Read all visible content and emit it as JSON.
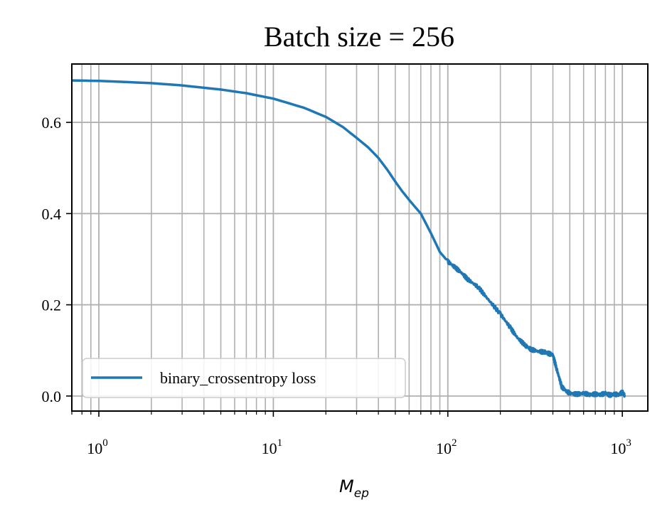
{
  "chart_data": {
    "type": "line",
    "title": "Batch size = 256",
    "xlabel": {
      "base": "M",
      "sub": "ep"
    },
    "ylabel": "",
    "x_scale": "log",
    "xlim": [
      0.7,
      1400
    ],
    "ylim": [
      -0.033,
      0.728
    ],
    "grid": true,
    "grid_minor_x": true,
    "legend_position": "lower-left",
    "line_color": "#1f77b4",
    "x_ticks": [
      {
        "value": 1,
        "base": "10",
        "exp": "0"
      },
      {
        "value": 10,
        "base": "10",
        "exp": "1"
      },
      {
        "value": 100,
        "base": "10",
        "exp": "2"
      },
      {
        "value": 1000,
        "base": "10",
        "exp": "3"
      }
    ],
    "y_ticks": [
      {
        "value": 0.0,
        "label": "0.0"
      },
      {
        "value": 0.2,
        "label": "0.2"
      },
      {
        "value": 0.4,
        "label": "0.4"
      },
      {
        "value": 0.6,
        "label": "0.6"
      }
    ],
    "series": [
      {
        "name": "binary_crossentropy loss",
        "x": [
          0.7,
          1,
          2,
          3,
          5,
          7,
          10,
          15,
          20,
          25,
          30,
          35,
          40,
          45,
          50,
          55,
          60,
          70,
          80,
          90,
          100,
          110,
          120,
          130,
          150,
          170,
          200,
          230,
          250,
          280,
          300,
          330,
          360,
          380,
          400,
          420,
          450,
          480,
          500,
          550,
          600,
          650,
          700,
          750,
          800,
          850,
          900,
          950,
          1000,
          1030
        ],
        "y": [
          0.692,
          0.691,
          0.686,
          0.681,
          0.672,
          0.664,
          0.652,
          0.632,
          0.612,
          0.59,
          0.566,
          0.545,
          0.522,
          0.496,
          0.47,
          0.448,
          0.43,
          0.4,
          0.357,
          0.316,
          0.295,
          0.282,
          0.27,
          0.256,
          0.238,
          0.212,
          0.18,
          0.148,
          0.128,
          0.11,
          0.102,
          0.098,
          0.096,
          0.093,
          0.09,
          0.06,
          0.02,
          0.01,
          0.006,
          0.004,
          0.006,
          0.003,
          0.004,
          0.003,
          0.006,
          0.002,
          0.004,
          0.003,
          0.008,
          0.002
        ]
      }
    ]
  }
}
